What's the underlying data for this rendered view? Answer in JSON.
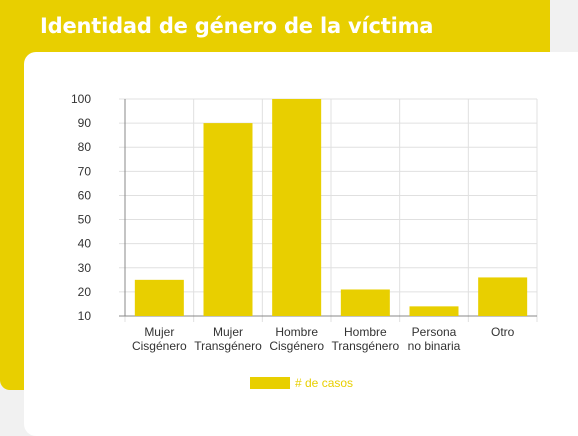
{
  "header": {
    "title": "Identidad de género de la víctima"
  },
  "colors": {
    "accent": "#e8cf00",
    "bar": "#e8cf00",
    "grid": "#e0e0e0",
    "text": "#333333"
  },
  "chart_data": {
    "type": "bar",
    "categories": [
      [
        "Mujer",
        "Cisgénero"
      ],
      [
        "Mujer",
        "Transgénero"
      ],
      [
        "Hombre",
        "Cisgénero"
      ],
      [
        "Hombre",
        "Transgénero"
      ],
      [
        "Persona",
        "no binaria"
      ],
      [
        "Otro"
      ]
    ],
    "series": [
      {
        "name": "# de casos",
        "values": [
          25,
          90,
          100,
          21,
          14,
          26
        ]
      }
    ],
    "yticks": [
      10,
      20,
      30,
      40,
      50,
      60,
      70,
      80,
      90,
      100
    ],
    "ylim": [
      10,
      100
    ],
    "grid": true,
    "legend": "bottom"
  }
}
